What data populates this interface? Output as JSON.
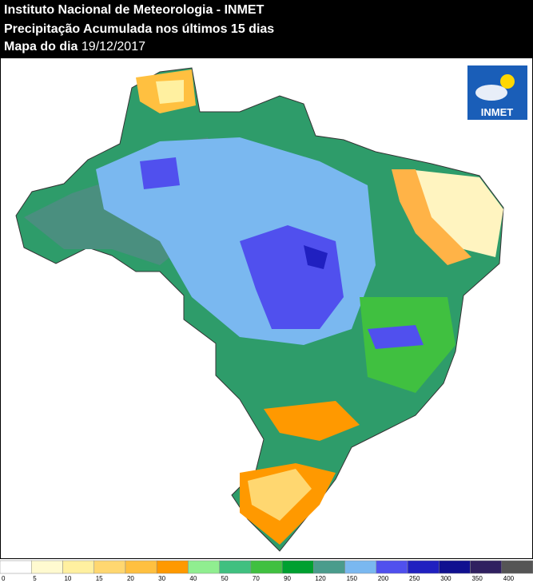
{
  "header": {
    "line1": "Instituto Nacional de Meteorologia - INMET",
    "line2": "Precipitação Acumulada nos últimos 15 dias",
    "date_label": "Mapa do dia",
    "date": "19/12/2017"
  },
  "logo": "INMET",
  "legend": {
    "ticks": [
      0,
      5,
      10,
      15,
      20,
      30,
      40,
      50,
      70,
      90,
      120,
      150,
      200,
      250,
      300,
      350,
      400
    ],
    "colors": [
      "#ffffff",
      "#fffad0",
      "#fff0a0",
      "#ffd770",
      "#ffc040",
      "#ff9900",
      "#90ee90",
      "#40c080",
      "#40c040",
      "#00a030",
      "#4a9c8c",
      "#7ab8f0",
      "#5050ee",
      "#2020c0",
      "#101090",
      "#302060",
      "#555555"
    ]
  }
}
